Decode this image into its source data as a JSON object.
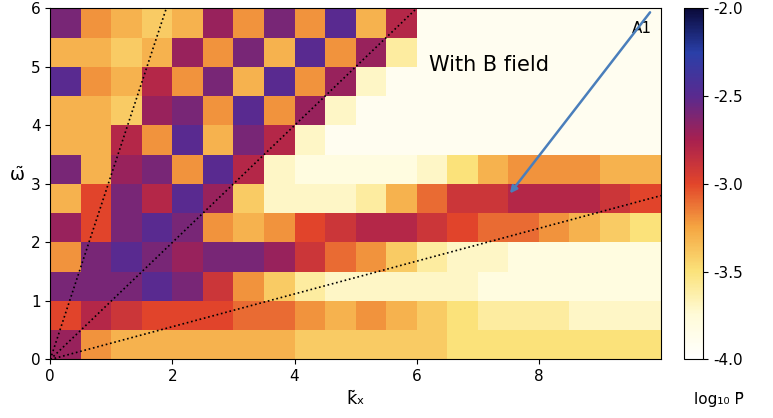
{
  "chart_data": {
    "type": "heatmap",
    "panel_label": "A1",
    "x_label": "k̃ₓ",
    "y_label": "ω̃",
    "colorbar_label": "log₁₀ P̃",
    "xlim": [
      0,
      10
    ],
    "xticks": [
      0,
      2,
      4,
      6,
      8
    ],
    "ylim": [
      0,
      6
    ],
    "yticks": [
      0,
      1,
      2,
      3,
      4,
      5,
      6
    ],
    "colorbar_range": [
      -4.0,
      -2.0
    ],
    "colorbar_ticks": [
      -2.0,
      -2.5,
      -3.0,
      -3.5,
      -4.0
    ],
    "x_edges": [
      0,
      0.5,
      1,
      1.5,
      2,
      2.5,
      3,
      3.5,
      4,
      4.5,
      5,
      5.5,
      6,
      6.5,
      7,
      7.5,
      8,
      8.5,
      9,
      9.5,
      10
    ],
    "y_edges": [
      0,
      0.5,
      1,
      1.5,
      2,
      2.5,
      3,
      3.5,
      4,
      4.5,
      5,
      5.5,
      6
    ],
    "cells": [
      [
        -2.7,
        -3.2,
        -3.3,
        -3.3,
        -3.3,
        -3.3,
        -3.3,
        -3.3,
        -3.4,
        -3.4,
        -3.4,
        -3.4,
        -3.4,
        -3.5,
        -3.5,
        -3.5,
        -3.5,
        -3.5,
        -3.5,
        -3.5
      ],
      [
        -3.0,
        -2.8,
        -2.9,
        -3.0,
        -3.0,
        -3.0,
        -3.1,
        -3.1,
        -3.2,
        -3.3,
        -3.2,
        -3.3,
        -3.4,
        -3.5,
        -3.6,
        -3.6,
        -3.6,
        -3.7,
        -3.7,
        -3.7
      ],
      [
        -2.6,
        -2.6,
        -2.6,
        -2.5,
        -2.6,
        -2.9,
        -3.2,
        -3.4,
        -3.6,
        -3.7,
        -3.7,
        -3.7,
        -3.7,
        -3.7,
        -3.8,
        -3.8,
        -3.8,
        -3.8,
        -3.8,
        -3.8
      ],
      [
        -3.2,
        -2.6,
        -2.5,
        -2.6,
        -2.7,
        -2.6,
        -2.6,
        -2.7,
        -2.9,
        -3.1,
        -3.2,
        -3.4,
        -3.6,
        -3.7,
        -3.7,
        -3.8,
        -3.8,
        -3.8,
        -3.8,
        -3.8
      ],
      [
        -2.7,
        -3.0,
        -2.6,
        -2.5,
        -2.6,
        -3.2,
        -3.3,
        -3.2,
        -3.0,
        -2.9,
        -2.8,
        -2.8,
        -2.9,
        -3.0,
        -3.1,
        -3.1,
        -3.2,
        -3.3,
        -3.4,
        -3.5
      ],
      [
        -3.3,
        -3.0,
        -2.6,
        -2.8,
        -2.5,
        -2.7,
        -3.4,
        -3.7,
        -3.7,
        -3.7,
        -3.6,
        -3.3,
        -3.1,
        -2.9,
        -2.9,
        -2.8,
        -2.8,
        -2.8,
        -2.9,
        -3.0
      ],
      [
        -2.6,
        -3.3,
        -2.7,
        -2.6,
        -3.2,
        -2.5,
        -2.8,
        -3.7,
        -3.8,
        -3.8,
        -3.8,
        -3.8,
        -3.7,
        -3.5,
        -3.3,
        -3.2,
        -3.2,
        -3.2,
        -3.3,
        -3.3
      ],
      [
        -3.3,
        -3.3,
        -2.8,
        -3.2,
        -2.5,
        -3.3,
        -2.6,
        -2.8,
        -3.7,
        -3.9,
        -3.9,
        -3.9,
        -3.9,
        -3.9,
        -3.9,
        -3.9,
        -3.9,
        -3.9,
        -3.9,
        -3.9
      ],
      [
        -3.3,
        -3.3,
        -3.4,
        -2.7,
        -2.6,
        -3.2,
        -2.5,
        -3.2,
        -2.7,
        -3.7,
        -3.9,
        -3.9,
        -3.9,
        -3.9,
        -3.9,
        -3.9,
        -3.9,
        -3.9,
        -3.9,
        -3.9
      ],
      [
        -2.5,
        -3.2,
        -3.3,
        -2.8,
        -3.2,
        -2.6,
        -3.3,
        -2.5,
        -3.2,
        -2.7,
        -3.7,
        -3.9,
        -3.9,
        -3.9,
        -3.9,
        -3.9,
        -3.9,
        -3.9,
        -3.9,
        -3.9
      ],
      [
        -3.3,
        -3.3,
        -3.4,
        -3.3,
        -2.7,
        -3.2,
        -2.6,
        -3.3,
        -2.5,
        -3.2,
        -2.7,
        -3.6,
        -3.9,
        -3.9,
        -3.9,
        -3.9,
        -3.9,
        -3.9,
        -3.9,
        -3.9
      ],
      [
        -2.6,
        -3.2,
        -3.3,
        -3.4,
        -3.3,
        -2.7,
        -3.2,
        -2.6,
        -3.2,
        -2.5,
        -3.3,
        -2.8,
        -3.9,
        -3.9,
        -3.9,
        -3.9,
        -3.9,
        -3.9,
        -3.9,
        -3.9
      ]
    ],
    "series": [
      {
        "type": "line",
        "x": [
          0,
          1.9
        ],
        "values": [
          0,
          6
        ],
        "color": "#000000",
        "line_style": "dotted"
      },
      {
        "type": "line",
        "x": [
          0,
          6
        ],
        "values": [
          0,
          6
        ],
        "color": "#000000",
        "line_style": "dotted"
      },
      {
        "type": "line",
        "x": [
          0,
          10
        ],
        "values": [
          0,
          2.8
        ],
        "color": "#000000",
        "line_style": "dotted"
      }
    ],
    "annotations": [
      {
        "text": "With B field",
        "x": 7.5,
        "y": 2.8
      }
    ]
  }
}
